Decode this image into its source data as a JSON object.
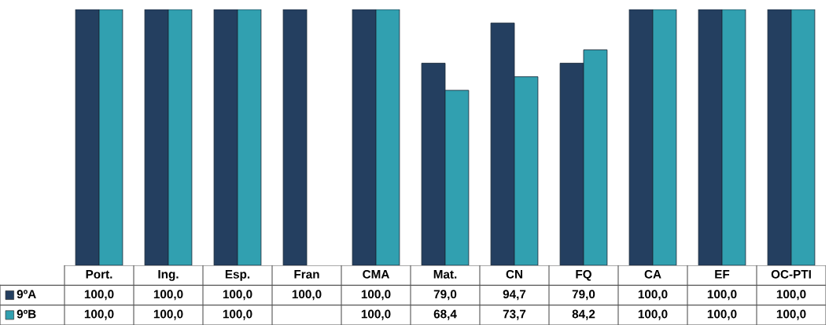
{
  "chart_data": {
    "type": "bar",
    "categories": [
      "Port.",
      "Ing.",
      "Esp.",
      "Fran",
      "CMA",
      "Mat.",
      "CN",
      "FQ",
      "CA",
      "EF",
      "OC-PTI"
    ],
    "series": [
      {
        "name": "9ºA",
        "color": "#243f60",
        "values": [
          100.0,
          100.0,
          100.0,
          100.0,
          100.0,
          79.0,
          94.7,
          79.0,
          100.0,
          100.0,
          100.0
        ],
        "value_labels": [
          "100,0",
          "100,0",
          "100,0",
          "100,0",
          "100,0",
          "79,0",
          "94,7",
          "79,0",
          "100,0",
          "100,0",
          "100,0"
        ]
      },
      {
        "name": "9ºB",
        "color": "#31a0b0",
        "values": [
          100.0,
          100.0,
          100.0,
          null,
          100.0,
          68.4,
          73.7,
          84.2,
          100.0,
          100.0,
          100.0
        ],
        "value_labels": [
          "100,0",
          "100,0",
          "100,0",
          null,
          "100,0",
          "68,4",
          "73,7",
          "84,2",
          "100,0",
          "100,0",
          "100,0"
        ]
      }
    ],
    "legend": "bottom left"
  }
}
